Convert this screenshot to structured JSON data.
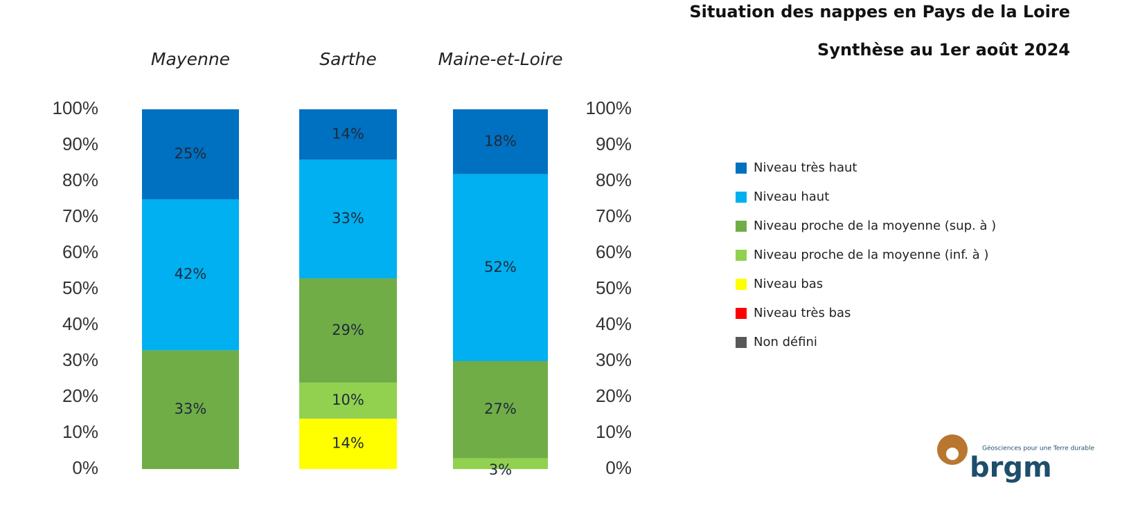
{
  "chart_data": {
    "type": "stacked_bar",
    "title": "Situation des nappes en Pays de la Loire",
    "subtitle": "Synthèse au 1er août 2024",
    "categories": [
      "Mayenne",
      "Sarthe",
      "Maine-et-Loire"
    ],
    "ylim": [
      0,
      100
    ],
    "yticks": [
      {
        "value": 0,
        "label": "0%"
      },
      {
        "value": 10,
        "label": "10%"
      },
      {
        "value": 20,
        "label": "20%"
      },
      {
        "value": 30,
        "label": "30%"
      },
      {
        "value": 40,
        "label": "40%"
      },
      {
        "value": 50,
        "label": "50%"
      },
      {
        "value": 60,
        "label": "60%"
      },
      {
        "value": 70,
        "label": "70%"
      },
      {
        "value": 80,
        "label": "80%"
      },
      {
        "value": 90,
        "label": "90%"
      },
      {
        "value": 100,
        "label": "100%"
      }
    ],
    "legend": "right",
    "series": [
      {
        "name": "Niveau très haut",
        "color": "#0070c0",
        "values": [
          25,
          14,
          18
        ],
        "value_labels": [
          "25%",
          "14%",
          "18%"
        ]
      },
      {
        "name": "Niveau haut",
        "color": "#00b0f0",
        "values": [
          42,
          33,
          52
        ],
        "value_labels": [
          "42%",
          "33%",
          "52%"
        ]
      },
      {
        "name": "Niveau proche de la moyenne (sup. à )",
        "color": "#70ad47",
        "values": [
          33,
          29,
          27
        ],
        "value_labels": [
          "33%",
          "29%",
          "27%"
        ]
      },
      {
        "name": "Niveau proche de la moyenne (inf. à )",
        "color": "#92d050",
        "values": [
          0,
          10,
          3
        ],
        "value_labels": [
          null,
          "10%",
          "3%"
        ]
      },
      {
        "name": "Niveau bas",
        "color": "#ffff00",
        "values": [
          0,
          14,
          0
        ],
        "value_labels": [
          null,
          "14%",
          null
        ]
      },
      {
        "name": "Niveau très bas",
        "color": "#ff0000",
        "values": [
          0,
          0,
          0
        ],
        "value_labels": [
          null,
          null,
          null
        ]
      },
      {
        "name": "Non défini",
        "color": "#595959",
        "values": [
          0,
          0,
          0
        ],
        "value_labels": [
          null,
          null,
          null
        ]
      }
    ]
  },
  "logo": {
    "name": "brgm",
    "tagline": "Géosciences pour une Terre durable"
  }
}
